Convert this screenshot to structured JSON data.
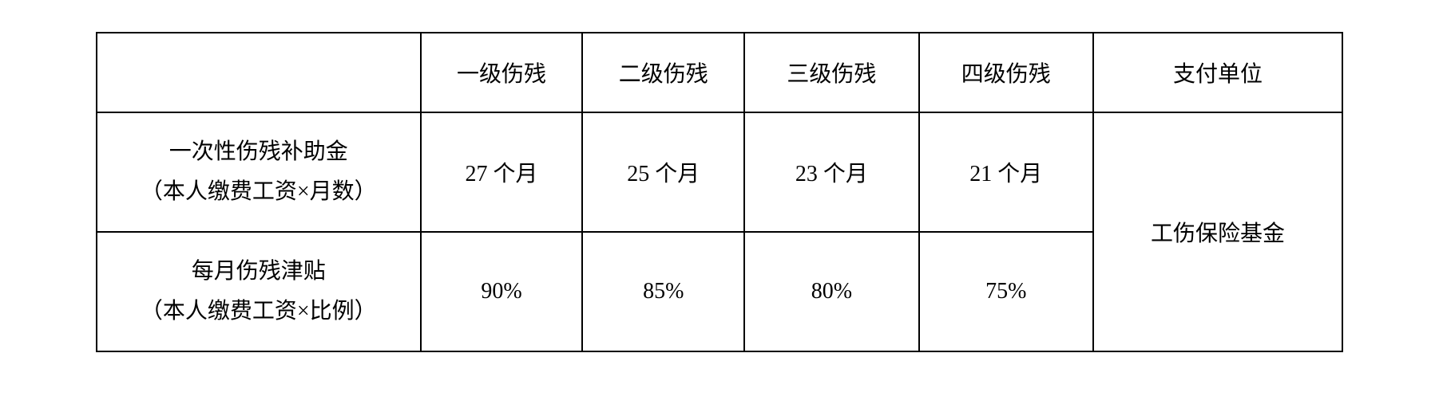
{
  "table": {
    "type": "table",
    "background_color": "#ffffff",
    "border_color": "#000000",
    "border_width": 2,
    "font_family": "SimSun",
    "font_size": 28,
    "text_color": "#000000",
    "columns": [
      {
        "id": "item",
        "label": "",
        "width_pct": 26,
        "align": "center"
      },
      {
        "id": "level1",
        "label": "一级伤残",
        "width_pct": 13,
        "align": "center"
      },
      {
        "id": "level2",
        "label": "二级伤残",
        "width_pct": 13,
        "align": "center"
      },
      {
        "id": "level3",
        "label": "三级伤残",
        "width_pct": 14,
        "align": "center"
      },
      {
        "id": "level4",
        "label": "四级伤残",
        "width_pct": 14,
        "align": "center"
      },
      {
        "id": "payer",
        "label": "支付单位",
        "width_pct": 20,
        "align": "center"
      }
    ],
    "rows": [
      {
        "header_line1": "一次性伤残补助金",
        "header_line2": "（本人缴费工资×月数）",
        "values": [
          "27 个月",
          "25 个月",
          "23 个月",
          "21 个月"
        ]
      },
      {
        "header_line1": "每月伤残津贴",
        "header_line2": "（本人缴费工资×比例）",
        "values": [
          "90%",
          "85%",
          "80%",
          "75%"
        ]
      }
    ],
    "merged_payer_cell": {
      "label": "工伤保险基金",
      "rowspan": 2
    }
  }
}
